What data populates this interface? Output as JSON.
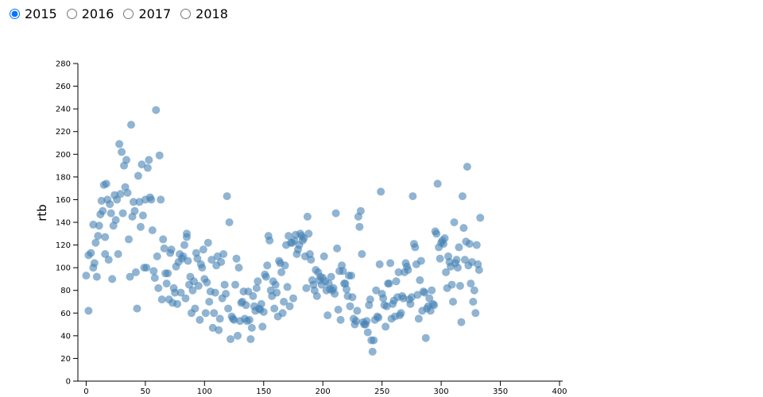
{
  "controls": {
    "options": [
      "2015",
      "2016",
      "2017",
      "2018"
    ],
    "selected": 0
  },
  "chart_data": {
    "type": "scatter",
    "y_label": "rtb",
    "color": "#4682b4",
    "xlim": [
      -7,
      400
    ],
    "xticks": [
      0,
      50,
      100,
      150,
      200,
      250,
      300,
      350,
      400
    ],
    "ylim": [
      0,
      280
    ],
    "yticks": [
      0,
      20,
      40,
      60,
      80,
      100,
      120,
      140,
      160,
      180,
      200,
      220,
      240,
      260,
      280
    ],
    "x": [
      0,
      2,
      2,
      4,
      6,
      6,
      7,
      8,
      9,
      10,
      11,
      12,
      13,
      14,
      15,
      16,
      16,
      17,
      18,
      19,
      20,
      21,
      22,
      23,
      24,
      25,
      26,
      27,
      28,
      29,
      30,
      31,
      32,
      33,
      34,
      35,
      36,
      37,
      38,
      39,
      40,
      41,
      42,
      43,
      44,
      45,
      46,
      47,
      48,
      49,
      50,
      51,
      52,
      53,
      54,
      55,
      56,
      57,
      58,
      59,
      60,
      61,
      62,
      63,
      64,
      65,
      66,
      67,
      68,
      69,
      70,
      71,
      72,
      73,
      74,
      75,
      76,
      77,
      78,
      79,
      80,
      81,
      82,
      83,
      84,
      85,
      85,
      86,
      87,
      88,
      89,
      90,
      91,
      92,
      93,
      94,
      95,
      96,
      97,
      98,
      99,
      100,
      101,
      102,
      103,
      104,
      105,
      106,
      107,
      108,
      109,
      110,
      111,
      112,
      113,
      114,
      115,
      116,
      117,
      118,
      119,
      120,
      121,
      122,
      123,
      124,
      125,
      126,
      127,
      128,
      129,
      130,
      131,
      132,
      133,
      134,
      135,
      136,
      137,
      138,
      139,
      140,
      141,
      142,
      143,
      144,
      145,
      146,
      147,
      148,
      149,
      150,
      151,
      152,
      153,
      154,
      155,
      156,
      157,
      158,
      159,
      160,
      161,
      162,
      163,
      164,
      165,
      166,
      167,
      168,
      169,
      170,
      171,
      172,
      173,
      174,
      175,
      176,
      177,
      178,
      179,
      180,
      181,
      182,
      183,
      184,
      185,
      186,
      187,
      188,
      189,
      190,
      191,
      192,
      193,
      194,
      195,
      196,
      197,
      198,
      199,
      200,
      201,
      202,
      203,
      204,
      205,
      206,
      207,
      208,
      209,
      210,
      211,
      212,
      213,
      214,
      215,
      216,
      217,
      218,
      219,
      220,
      221,
      222,
      223,
      224,
      225,
      226,
      227,
      228,
      229,
      230,
      231,
      232,
      233,
      234,
      235,
      236,
      237,
      238,
      239,
      240,
      241,
      242,
      243,
      244,
      245,
      246,
      247,
      248,
      249,
      250,
      251,
      252,
      253,
      254,
      255,
      256,
      257,
      258,
      259,
      260,
      261,
      262,
      263,
      264,
      265,
      266,
      267,
      268,
      269,
      270,
      271,
      272,
      273,
      274,
      275,
      276,
      277,
      278,
      279,
      280,
      281,
      282,
      283,
      284,
      285,
      286,
      287,
      288,
      289,
      290,
      291,
      292,
      293,
      294,
      295,
      296,
      297,
      298,
      299,
      300,
      301,
      302,
      303,
      304,
      305,
      306,
      307,
      308,
      309,
      310,
      311,
      312,
      313,
      314,
      315,
      316,
      317,
      318,
      319,
      320,
      321,
      322,
      323,
      324,
      325,
      326,
      327,
      328,
      329,
      330,
      331,
      332,
      333
    ],
    "values": [
      93,
      62,
      111,
      113,
      138,
      100,
      104,
      122,
      92,
      128,
      137,
      147,
      159,
      150,
      173,
      112,
      127,
      174,
      160,
      107,
      156,
      148,
      90,
      137,
      164,
      142,
      160,
      112,
      209,
      165,
      202,
      148,
      190,
      171,
      195,
      166,
      125,
      92,
      226,
      145,
      158,
      150,
      96,
      64,
      181,
      158,
      136,
      191,
      146,
      100,
      160,
      100,
      188,
      195,
      162,
      160,
      133,
      97,
      91,
      239,
      110,
      82,
      199,
      160,
      72,
      125,
      117,
      95,
      86,
      95,
      72,
      113,
      116,
      69,
      82,
      78,
      101,
      68,
      105,
      112,
      78,
      108,
      110,
      120,
      73,
      130,
      127,
      106,
      85,
      92,
      60,
      80,
      88,
      64,
      113,
      108,
      84,
      54,
      103,
      100,
      116,
      90,
      60,
      87,
      122,
      70,
      79,
      107,
      47,
      60,
      78,
      102,
      110,
      45,
      55,
      105,
      73,
      112,
      85,
      77,
      163,
      64,
      140,
      37,
      57,
      55,
      54,
      85,
      108,
      40,
      100,
      53,
      69,
      70,
      79,
      55,
      67,
      53,
      79,
      54,
      37,
      47,
      75,
      66,
      62,
      82,
      88,
      64,
      63,
      68,
      48,
      61,
      94,
      92,
      102,
      128,
      124,
      80,
      75,
      88,
      64,
      85,
      78,
      57,
      106,
      104,
      96,
      60,
      70,
      102,
      120,
      83,
      128,
      66,
      122,
      122,
      73,
      124,
      129,
      112,
      116,
      120,
      130,
      128,
      124,
      126,
      110,
      82,
      145,
      130,
      112,
      107,
      89,
      85,
      80,
      98,
      75,
      96,
      89,
      92,
      85,
      91,
      110,
      88,
      80,
      58,
      86,
      81,
      92,
      80,
      82,
      77,
      148,
      117,
      63,
      97,
      54,
      102,
      97,
      86,
      86,
      81,
      75,
      93,
      66,
      93,
      74,
      55,
      50,
      53,
      62,
      145,
      136,
      150,
      112,
      52,
      50,
      50,
      53,
      43,
      67,
      72,
      36,
      26,
      36,
      54,
      80,
      57,
      56,
      103,
      167,
      77,
      73,
      67,
      48,
      66,
      86,
      86,
      104,
      55,
      68,
      71,
      57,
      88,
      74,
      96,
      58,
      60,
      75,
      73,
      96,
      104,
      101,
      98,
      72,
      68,
      74,
      163,
      121,
      118,
      103,
      76,
      55,
      89,
      106,
      62,
      79,
      78,
      38,
      64,
      66,
      73,
      62,
      80,
      68,
      67,
      132,
      130,
      174,
      118,
      108,
      122,
      124,
      121,
      126,
      96,
      82,
      110,
      105,
      101,
      85,
      70,
      140,
      104,
      107,
      100,
      118,
      84,
      52,
      163,
      135,
      107,
      123,
      189,
      102,
      121,
      86,
      105,
      70,
      80,
      60,
      120,
      103,
      98,
      144
    ]
  }
}
